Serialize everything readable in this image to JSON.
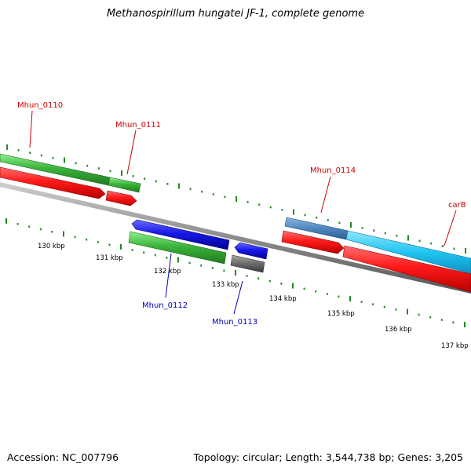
{
  "title": "Methanospirillum hungatei JF-1, complete genome",
  "accession_text": "Accession: NC_007796",
  "summary_text": "Topology: circular; Length: 3,544,738 bp; Genes: 3,205",
  "colors": {
    "forward_cds": "#ff1a1a",
    "forward_gene": "#3cb43c",
    "forward_gene_special": "#20c4f0",
    "reverse_cds": "#1818e8",
    "reverse_gene": "#3cb43c",
    "reverse_other": "#707070",
    "backbone": "#8c8c8c",
    "tick": "#208c20",
    "label_forward": "#cc0000",
    "label_reverse": "#0000bb"
  },
  "scale": {
    "labels": [
      "130 kbp",
      "131 kbp",
      "132 kbp",
      "133 kbp",
      "134 kbp",
      "135 kbp",
      "136 kbp",
      "137 kbp"
    ]
  },
  "genes": [
    {
      "name": "Mhun_0110",
      "strand": "forward"
    },
    {
      "name": "Mhun_0111",
      "strand": "forward"
    },
    {
      "name": "Mhun_0112",
      "strand": "reverse"
    },
    {
      "name": "Mhun_0113",
      "strand": "reverse"
    },
    {
      "name": "Mhun_0114",
      "strand": "forward"
    },
    {
      "name": "carB",
      "strand": "forward"
    }
  ]
}
